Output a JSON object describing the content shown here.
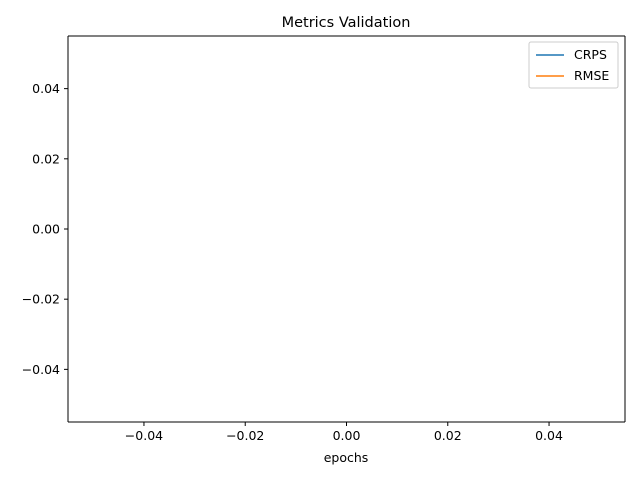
{
  "chart_data": {
    "type": "line",
    "title": "Metrics Validation",
    "xlabel": "epochs",
    "ylabel": "",
    "xlim": [
      -0.055,
      0.055
    ],
    "ylim": [
      -0.055,
      0.055
    ],
    "x_ticks": [
      -0.04,
      -0.02,
      0.0,
      0.02,
      0.04
    ],
    "x_tick_labels": [
      "−0.04",
      "−0.02",
      "0.00",
      "0.02",
      "0.04"
    ],
    "y_ticks": [
      -0.04,
      -0.02,
      0.0,
      0.02,
      0.04
    ],
    "y_tick_labels": [
      "−0.04",
      "−0.02",
      "0.00",
      "0.02",
      "0.04"
    ],
    "grid": false,
    "legend_position": "top-right",
    "series": [
      {
        "name": "CRPS",
        "color": "#1f77b4",
        "x": [],
        "y": []
      },
      {
        "name": "RMSE",
        "color": "#ff7f0e",
        "x": [],
        "y": []
      }
    ]
  }
}
